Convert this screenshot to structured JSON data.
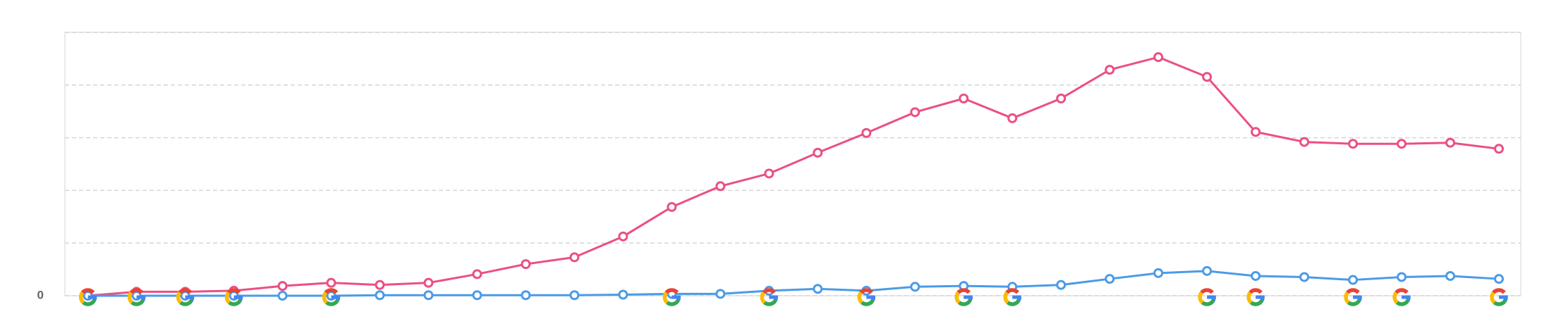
{
  "chart_data": {
    "type": "line",
    "categories": [
      null,
      null,
      null,
      null,
      null,
      null,
      null,
      null,
      null,
      null,
      null,
      null,
      null,
      null,
      null,
      null,
      null,
      null,
      null,
      null,
      null,
      null,
      null,
      null,
      null,
      null,
      null,
      null,
      null,
      null
    ],
    "series": [
      {
        "color": "#ec4f82",
        "values": [
          0,
          1.5,
          1.5,
          1.9,
          3.7,
          4.9,
          4.1,
          4.9,
          8.2,
          12,
          14.6,
          22.5,
          33.7,
          41.6,
          46.4,
          54.3,
          61.8,
          69.7,
          74.9,
          67.4,
          74.9,
          85.8,
          90.6,
          83.1,
          62.2,
          58.4,
          57.7,
          57.7,
          58.1,
          55.8
        ]
      },
      {
        "color": "#4a9be8",
        "values": [
          0,
          0,
          0,
          0,
          0,
          0,
          0.2,
          0.2,
          0.2,
          0.2,
          0.2,
          0.4,
          0.7,
          0.7,
          1.9,
          2.6,
          1.9,
          3.4,
          3.7,
          3.4,
          4.1,
          6.4,
          8.6,
          9.4,
          7.5,
          7.1,
          6,
          7.1,
          7.5,
          6.4
        ]
      }
    ],
    "annotation_points": [
      0,
      1,
      2,
      3,
      5,
      12,
      14,
      16,
      18,
      19,
      23,
      24,
      26,
      27,
      29
    ],
    "ylim": [
      0,
      100
    ],
    "yticks": [
      0,
      {
        "value": 20,
        "label": null
      },
      {
        "value": 40,
        "label": null
      },
      {
        "value": 60,
        "label": null
      },
      {
        "value": 80,
        "label": null
      },
      {
        "value": 100,
        "label": null
      }
    ],
    "grid": true
  }
}
